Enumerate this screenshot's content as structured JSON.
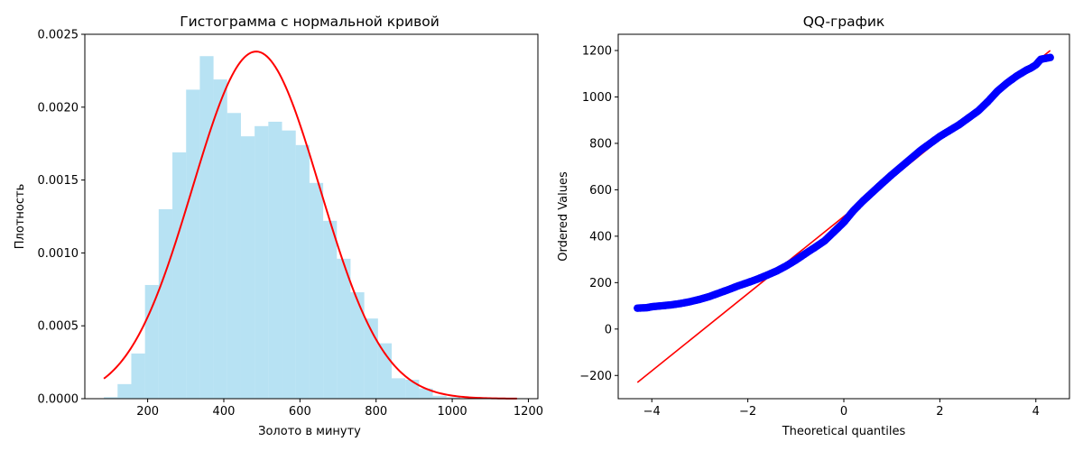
{
  "chart_data": [
    {
      "type": "bar",
      "title": "Гистограмма с нормальной кривой",
      "xlabel": "Золото в минуту",
      "ylabel": "Плотность",
      "xlim": [
        35,
        1225
      ],
      "ylim": [
        0,
        0.0025
      ],
      "xticks": [
        200,
        400,
        600,
        800,
        1000,
        1200
      ],
      "yticks": [
        0.0,
        0.0005,
        0.001,
        0.0015,
        0.002,
        0.0025
      ],
      "ytick_labels": [
        "0.0000",
        "0.0005",
        "0.0010",
        "0.0015",
        "0.0020",
        "0.0025"
      ],
      "bin_width": 36,
      "bin_starts": [
        85,
        121,
        157,
        193,
        229,
        265,
        301,
        337,
        373,
        409,
        445,
        481,
        517,
        553,
        589,
        625,
        661,
        697,
        733,
        769,
        805,
        841,
        877,
        913,
        949,
        985
      ],
      "values": [
        1e-05,
        0.0001,
        0.00031,
        0.00078,
        0.0013,
        0.00169,
        0.00212,
        0.00235,
        0.00219,
        0.00196,
        0.0018,
        0.00187,
        0.0019,
        0.00184,
        0.00174,
        0.00148,
        0.00122,
        0.00096,
        0.00073,
        0.00055,
        0.00038,
        0.00014,
        0.00013,
        7e-05,
        2e-05,
        1e-05
      ],
      "bar_color": "#87CEEB",
      "bar_opacity": 0.6,
      "curve": {
        "name": "normal pdf",
        "mean": 485,
        "sd": 167.5,
        "x_range": [
          85,
          1170
        ],
        "color": "#FF0000"
      },
      "grid": false
    },
    {
      "type": "scatter",
      "title": "QQ-график",
      "xlabel": "Theoretical quantiles",
      "ylabel": "Ordered Values",
      "xlim": [
        -4.7,
        4.7
      ],
      "ylim": [
        -300,
        1270
      ],
      "xticks": [
        -4,
        -2,
        0,
        2,
        4
      ],
      "yticks": [
        -200,
        0,
        200,
        400,
        600,
        800,
        1000,
        1200
      ],
      "points": [
        [
          -4.3,
          90
        ],
        [
          -4.1,
          92
        ],
        [
          -4.0,
          96
        ],
        [
          -3.9,
          98
        ],
        [
          -3.8,
          100
        ],
        [
          -3.6,
          104
        ],
        [
          -3.4,
          110
        ],
        [
          -3.2,
          118
        ],
        [
          -3.0,
          128
        ],
        [
          -2.8,
          140
        ],
        [
          -2.6,
          155
        ],
        [
          -2.4,
          170
        ],
        [
          -2.2,
          186
        ],
        [
          -2.0,
          200
        ],
        [
          -1.8,
          215
        ],
        [
          -1.6,
          232
        ],
        [
          -1.4,
          250
        ],
        [
          -1.2,
          272
        ],
        [
          -1.0,
          297
        ],
        [
          -0.8,
          325
        ],
        [
          -0.6,
          352
        ],
        [
          -0.4,
          380
        ],
        [
          -0.2,
          420
        ],
        [
          0.0,
          460
        ],
        [
          0.2,
          510
        ],
        [
          0.4,
          552
        ],
        [
          0.6,
          590
        ],
        [
          0.8,
          628
        ],
        [
          1.0,
          665
        ],
        [
          1.2,
          700
        ],
        [
          1.4,
          735
        ],
        [
          1.6,
          770
        ],
        [
          1.8,
          800
        ],
        [
          2.0,
          830
        ],
        [
          2.2,
          855
        ],
        [
          2.4,
          880
        ],
        [
          2.6,
          910
        ],
        [
          2.8,
          940
        ],
        [
          3.0,
          980
        ],
        [
          3.2,
          1025
        ],
        [
          3.4,
          1060
        ],
        [
          3.6,
          1090
        ],
        [
          3.8,
          1115
        ],
        [
          3.9,
          1125
        ],
        [
          4.0,
          1138
        ],
        [
          4.1,
          1162
        ],
        [
          4.3,
          1170
        ]
      ],
      "point_color": "#0000FF",
      "fit_line": {
        "x": [
          -4.3,
          4.3
        ],
        "y": [
          -230,
          1200
        ],
        "color": "#FF0000"
      },
      "grid": false
    }
  ]
}
